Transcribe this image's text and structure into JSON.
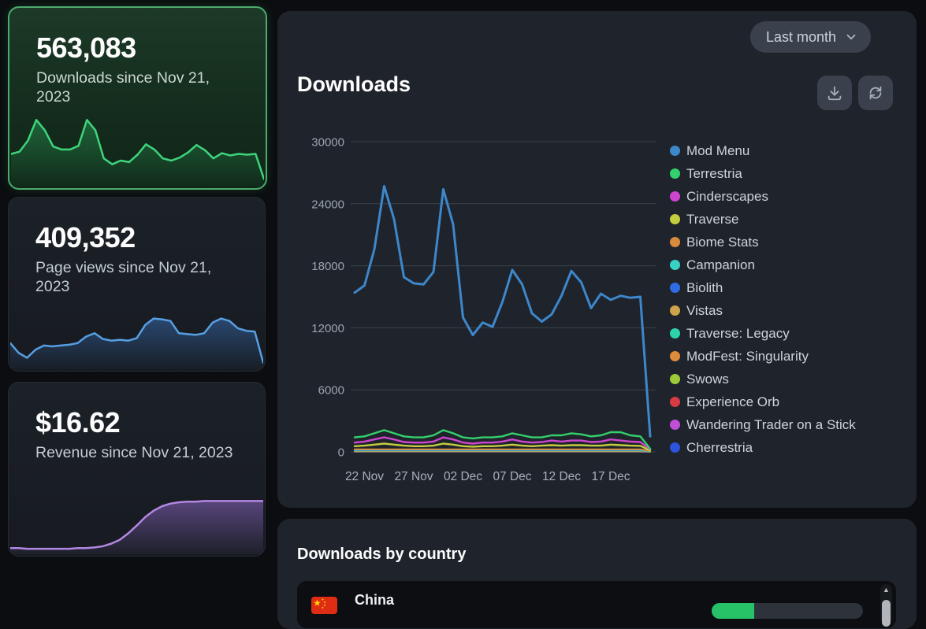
{
  "stat_cards": [
    {
      "value": "563,083",
      "label": "Downloads since Nov 21, 2023",
      "selected": true,
      "line_color": "#3ed47c",
      "fill_top": "rgba(45,185,98,0.40)",
      "fill_bottom": "rgba(45,185,98,0.03)",
      "sparkline": [
        0.42,
        0.45,
        0.6,
        0.88,
        0.74,
        0.52,
        0.48,
        0.48,
        0.53,
        0.88,
        0.74,
        0.36,
        0.28,
        0.33,
        0.31,
        0.41,
        0.55,
        0.48,
        0.36,
        0.33,
        0.37,
        0.44,
        0.54,
        0.47,
        0.36,
        0.43,
        0.4,
        0.42,
        0.41,
        0.42,
        0.08
      ]
    },
    {
      "value": "409,352",
      "label": "Page views since Nov 21, 2023",
      "selected": false,
      "line_color": "#579fe3",
      "fill_top": "rgba(64,130,216,0.42)",
      "fill_bottom": "rgba(64,130,216,0.03)",
      "sparkline": [
        0.3,
        0.18,
        0.12,
        0.22,
        0.27,
        0.26,
        0.27,
        0.28,
        0.3,
        0.38,
        0.42,
        0.35,
        0.33,
        0.34,
        0.33,
        0.36,
        0.52,
        0.6,
        0.59,
        0.57,
        0.42,
        0.41,
        0.4,
        0.42,
        0.55,
        0.6,
        0.57,
        0.48,
        0.45,
        0.44,
        0.06
      ]
    },
    {
      "value": "$16.62",
      "label": "Revenue since Nov 21, 2023",
      "selected": false,
      "line_color": "#b287e2",
      "fill_top": "rgba(140,102,196,0.55)",
      "fill_bottom": "rgba(140,102,196,0.06)",
      "sparkline": [
        0.07,
        0.07,
        0.06,
        0.06,
        0.06,
        0.06,
        0.06,
        0.06,
        0.07,
        0.07,
        0.08,
        0.1,
        0.14,
        0.2,
        0.3,
        0.42,
        0.55,
        0.65,
        0.72,
        0.76,
        0.78,
        0.79,
        0.79,
        0.8,
        0.8,
        0.8,
        0.8,
        0.8,
        0.8,
        0.8,
        0.8
      ]
    }
  ],
  "main_panel": {
    "title": "Downloads",
    "range_selector": {
      "label": "Last month",
      "icon": "chevron-down-icon"
    },
    "buttons": [
      {
        "name": "export-button",
        "icon": "download-icon"
      },
      {
        "name": "refresh-button",
        "icon": "refresh-icon"
      }
    ]
  },
  "chart_data": {
    "type": "line",
    "x_count": 31,
    "x_tick_labels": [
      "22 Nov",
      "27 Nov",
      "02 Dec",
      "07 Dec",
      "12 Dec",
      "17 Dec"
    ],
    "x_tick_idx": [
      1,
      6,
      11,
      16,
      21,
      26
    ],
    "y_ticks": [
      0,
      6000,
      12000,
      18000,
      24000,
      30000
    ],
    "ylim": [
      0,
      30000
    ],
    "grid": true,
    "legend_position": "right",
    "grid_color": "#3b4149",
    "ytick_color": "#9aa3ad",
    "xtick_color": "#a6afb9",
    "series": [
      {
        "name": "Mod Menu",
        "color": "#3d87cb",
        "values": [
          15400,
          16100,
          19600,
          25700,
          22500,
          16900,
          16300,
          16200,
          17400,
          25400,
          22000,
          13000,
          11300,
          12500,
          12100,
          14500,
          17600,
          16200,
          13400,
          12600,
          13300,
          15100,
          17500,
          16400,
          13900,
          15300,
          14700,
          15100,
          14900,
          15000,
          1500
        ]
      },
      {
        "name": "Terrestria",
        "color": "#34d06c",
        "values": [
          1400,
          1500,
          1800,
          2100,
          1800,
          1500,
          1400,
          1400,
          1600,
          2100,
          1800,
          1400,
          1300,
          1400,
          1400,
          1500,
          1800,
          1600,
          1400,
          1400,
          1600,
          1600,
          1800,
          1700,
          1500,
          1600,
          1900,
          1900,
          1600,
          1500,
          300
        ]
      },
      {
        "name": "Cinderscapes",
        "color": "#ce45cf",
        "values": [
          900,
          1000,
          1200,
          1400,
          1200,
          950,
          900,
          900,
          1000,
          1400,
          1200,
          900,
          800,
          900,
          900,
          1000,
          1200,
          1000,
          900,
          950,
          1100,
          1000,
          1100,
          1100,
          950,
          1000,
          1200,
          1100,
          1000,
          950,
          250
        ]
      },
      {
        "name": "Traverse",
        "color": "#c4cc3f",
        "values": [
          550,
          600,
          700,
          800,
          700,
          600,
          550,
          550,
          600,
          800,
          700,
          550,
          500,
          550,
          550,
          600,
          700,
          600,
          550,
          600,
          650,
          600,
          650,
          650,
          600,
          600,
          700,
          650,
          600,
          580,
          150
        ]
      },
      {
        "name": "Biome Stats",
        "color": "#d9893c",
        "flat": 250,
        "last": 80
      },
      {
        "name": "Campanion",
        "color": "#38d2c4",
        "flat": 190,
        "last": 60
      },
      {
        "name": "Biolith",
        "color": "#2e6be5",
        "flat": 150,
        "last": 50
      },
      {
        "name": "Vistas",
        "color": "#cfa24c",
        "flat": 120,
        "last": 40
      },
      {
        "name": "Traverse: Legacy",
        "color": "#2cd3ad",
        "flat": 90,
        "last": 30
      },
      {
        "name": "ModFest: Singularity",
        "color": "#dd8b3b",
        "flat": 70,
        "last": 25
      },
      {
        "name": "Swows",
        "color": "#9ccc36",
        "flat": 55,
        "last": 20
      },
      {
        "name": "Experience Orb",
        "color": "#d83b44",
        "flat": 40,
        "last": 15
      },
      {
        "name": "Wandering Trader on a Stick",
        "color": "#c14fd6",
        "flat": 28,
        "last": 10
      },
      {
        "name": "Cherrestria",
        "color": "#2d54dc",
        "flat": 15,
        "last": 5
      }
    ]
  },
  "country_panel": {
    "title": "Downloads by country",
    "rows": [
      {
        "country": "China",
        "flag": "china-flag-icon",
        "bar_fill_pct": 28,
        "bar_color": "#27c268"
      }
    ],
    "scrollbar": {
      "icon": "triangle-up-icon"
    }
  }
}
